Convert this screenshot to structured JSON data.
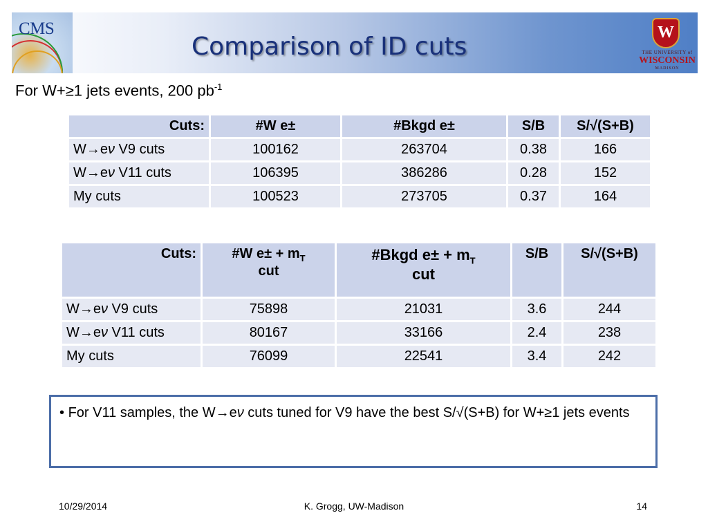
{
  "title": "Comparison of ID cuts",
  "subtitle": {
    "text": "For W+≥1 jets events, 200 pb",
    "sup": "-1"
  },
  "logos": {
    "cms": "CMS",
    "uw": {
      "crest": "W",
      "line1": "THE UNIVERSITY",
      "line2": "of",
      "name": "WISCONSIN",
      "line3": "MADISON"
    }
  },
  "table1": {
    "headers": [
      "Cuts:",
      "#W e±",
      "#Bkgd e±",
      "S/B",
      "S/√(S+B)"
    ],
    "rows": [
      {
        "cut_prefix": "W→e",
        "cut_nu": "ν",
        "cut_suffix": " V9 cuts",
        "w": "100162",
        "bkgd": "263704",
        "sb": "0.38",
        "sig": "166"
      },
      {
        "cut_prefix": "W→e",
        "cut_nu": "ν",
        "cut_suffix": " V11 cuts",
        "w": "106395",
        "bkgd": "386286",
        "sb": "0.28",
        "sig": "152"
      },
      {
        "cut_prefix": "My cuts",
        "cut_nu": "",
        "cut_suffix": "",
        "w": "100523",
        "bkgd": "273705",
        "sb": "0.37",
        "sig": "164"
      }
    ]
  },
  "table2": {
    "headers": {
      "cuts": "Cuts:",
      "w": {
        "pre": "#W e± + m",
        "sub": "T",
        "post": "cut"
      },
      "bkgd": {
        "pre": "#Bkgd e±  + m",
        "sub": "T",
        "post": "cut"
      },
      "sb": "S/B",
      "sig": "S/√(S+B)"
    },
    "rows": [
      {
        "cut_prefix": "W→e",
        "cut_nu": "ν",
        "cut_suffix": " V9 cuts",
        "w": "75898",
        "bkgd": "21031",
        "sb": "3.6",
        "sig": "244"
      },
      {
        "cut_prefix": "W→e",
        "cut_nu": "ν",
        "cut_suffix": " V11 cuts",
        "w": "80167",
        "bkgd": "33166",
        "sb": "2.4",
        "sig": "238"
      },
      {
        "cut_prefix": "My cuts",
        "cut_nu": "",
        "cut_suffix": "",
        "w": "76099",
        "bkgd": "22541",
        "sb": "3.4",
        "sig": "242"
      }
    ]
  },
  "note": {
    "bullet": "•",
    "pre": " For V11 samples, the W→e",
    "nu": "ν",
    "post": " cuts tuned for V9 have the best S/√(S+B) for W+≥1 jets events"
  },
  "footer": {
    "date": "10/29/2014",
    "author": "K. Grogg, UW-Madison",
    "page": "14"
  }
}
